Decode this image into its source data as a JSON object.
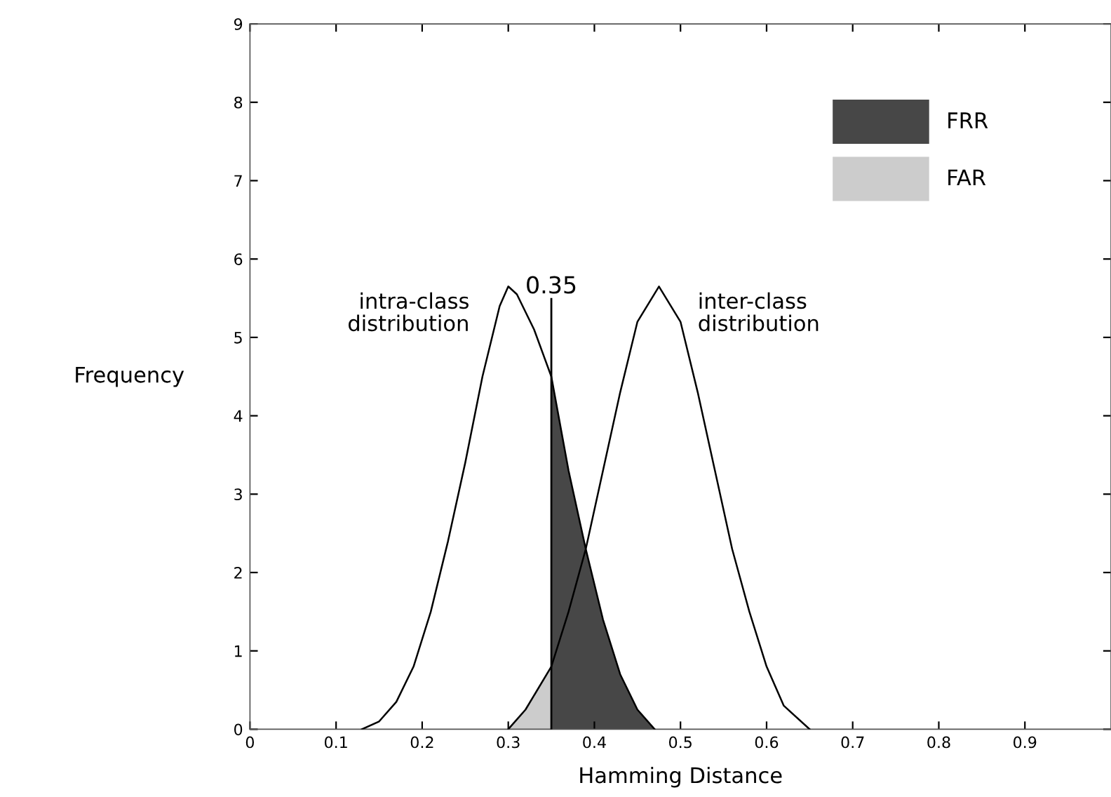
{
  "chart_data": {
    "type": "line",
    "xlabel": "Hamming Distance",
    "ylabel": "Frequency",
    "xlim": [
      0,
      1
    ],
    "xticks": [
      0,
      0.1,
      0.2,
      0.3,
      0.4,
      0.5,
      0.6,
      0.7,
      0.8,
      0.9
    ],
    "ylim": [
      0,
      9
    ],
    "yticks": [
      0,
      1,
      2,
      3,
      4,
      5,
      6,
      7,
      8,
      9
    ],
    "grid": false,
    "legend": "top right",
    "marker": "none",
    "line_style": "solid",
    "series": [
      {
        "name": "intra-class distribution",
        "color": "#000000",
        "x": [
          0.13,
          0.15,
          0.17,
          0.19,
          0.21,
          0.23,
          0.25,
          0.27,
          0.29,
          0.3,
          0.31,
          0.33,
          0.35,
          0.37,
          0.39,
          0.41,
          0.43,
          0.45,
          0.47
        ],
        "values": [
          0,
          0.1,
          0.35,
          0.8,
          1.5,
          2.4,
          3.4,
          4.5,
          5.4,
          5.65,
          5.55,
          5.1,
          4.5,
          3.3,
          2.3,
          1.4,
          0.7,
          0.25,
          0
        ]
      },
      {
        "name": "inter-class distribution",
        "color": "#000000",
        "x": [
          0.3,
          0.32,
          0.35,
          0.37,
          0.39,
          0.41,
          0.43,
          0.45,
          0.475,
          0.5,
          0.52,
          0.54,
          0.56,
          0.58,
          0.6,
          0.62,
          0.65
        ],
        "values": [
          0,
          0.25,
          0.8,
          1.5,
          2.3,
          3.3,
          4.3,
          5.2,
          5.65,
          5.2,
          4.3,
          3.3,
          2.3,
          1.5,
          0.8,
          0.3,
          0
        ]
      },
      {
        "name": "FRR",
        "type": "area",
        "color": "#474747",
        "x": [
          0.35,
          0.37,
          0.39,
          0.41,
          0.43,
          0.45,
          0.47
        ],
        "values": [
          4.5,
          3.3,
          2.3,
          1.4,
          0.7,
          0.25,
          0
        ]
      },
      {
        "name": "FAR",
        "type": "area",
        "color": "#cccccc",
        "x": [
          0.3,
          0.32,
          0.35
        ],
        "values": [
          0,
          0.25,
          0.8
        ]
      }
    ],
    "ref_lines": [
      {
        "axis": "x",
        "value": 0.35,
        "label": "0.35",
        "color": "#000000",
        "line_style": "solid"
      }
    ]
  }
}
